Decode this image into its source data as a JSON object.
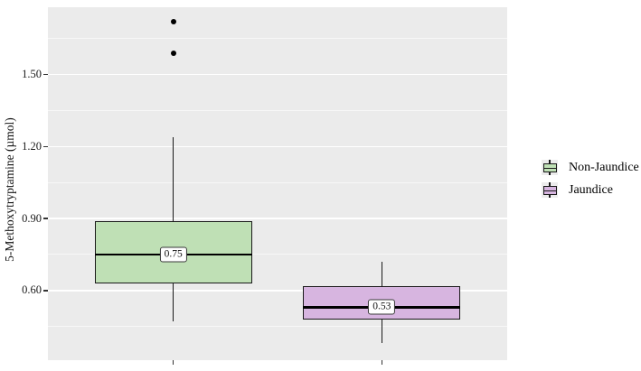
{
  "chart_data": {
    "type": "boxplot",
    "title": "",
    "xlabel": "",
    "ylabel": "5-Methoxytryptamine (µmol)",
    "ylim": [
      0.31,
      1.78
    ],
    "grid": true,
    "panel_bg": "#EBEBEB",
    "gridline_color": "#FFFFFF",
    "legend_position": "right",
    "y_ticks": [
      {
        "label": "1.50",
        "value": 1.5
      },
      {
        "label": "1.20",
        "value": 1.2
      },
      {
        "label": "0.90",
        "value": 0.9
      },
      {
        "label": "0.60",
        "value": 0.6
      }
    ],
    "minor_gridlines": [
      1.65,
      1.35,
      1.05,
      0.75,
      0.45
    ],
    "categories": [
      "Non-Jaundice",
      "Jaundice"
    ],
    "series": [
      {
        "name": "Non-Jaundice",
        "fill": "#BFE0B5",
        "stroke": "#1A1A1A",
        "x_frac": 0.273,
        "whisker_low": 0.47,
        "q1": 0.63,
        "median": 0.75,
        "q3": 0.89,
        "whisker_high": 1.24,
        "outliers": [
          1.59,
          1.72
        ],
        "median_label": "0.75"
      },
      {
        "name": "Jaundice",
        "fill": "#D7B5E0",
        "stroke": "#1A1A1A",
        "x_frac": 0.727,
        "whisker_low": 0.38,
        "q1": 0.48,
        "median": 0.53,
        "q3": 0.62,
        "whisker_high": 0.72,
        "outliers": [],
        "median_label": "0.53"
      }
    ],
    "legend": {
      "items": [
        {
          "label": "Non-Jaundice",
          "fill": "#BFE0B5"
        },
        {
          "label": "Jaundice",
          "fill": "#D7B5E0"
        }
      ]
    }
  }
}
